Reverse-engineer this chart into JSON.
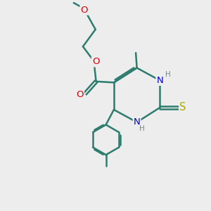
{
  "bg_color": "#ededee",
  "bond_color": "#2d7d6e",
  "bond_lw": 1.8,
  "atom_colors": {
    "O": "#dd0000",
    "N": "#0000cc",
    "S": "#aaaa00",
    "H": "#778888"
  },
  "font_size": 9.5,
  "fig_size": [
    3.0,
    3.0
  ],
  "dpi": 100,
  "xlim": [
    0.0,
    10.0
  ],
  "ylim": [
    0.0,
    10.0
  ]
}
